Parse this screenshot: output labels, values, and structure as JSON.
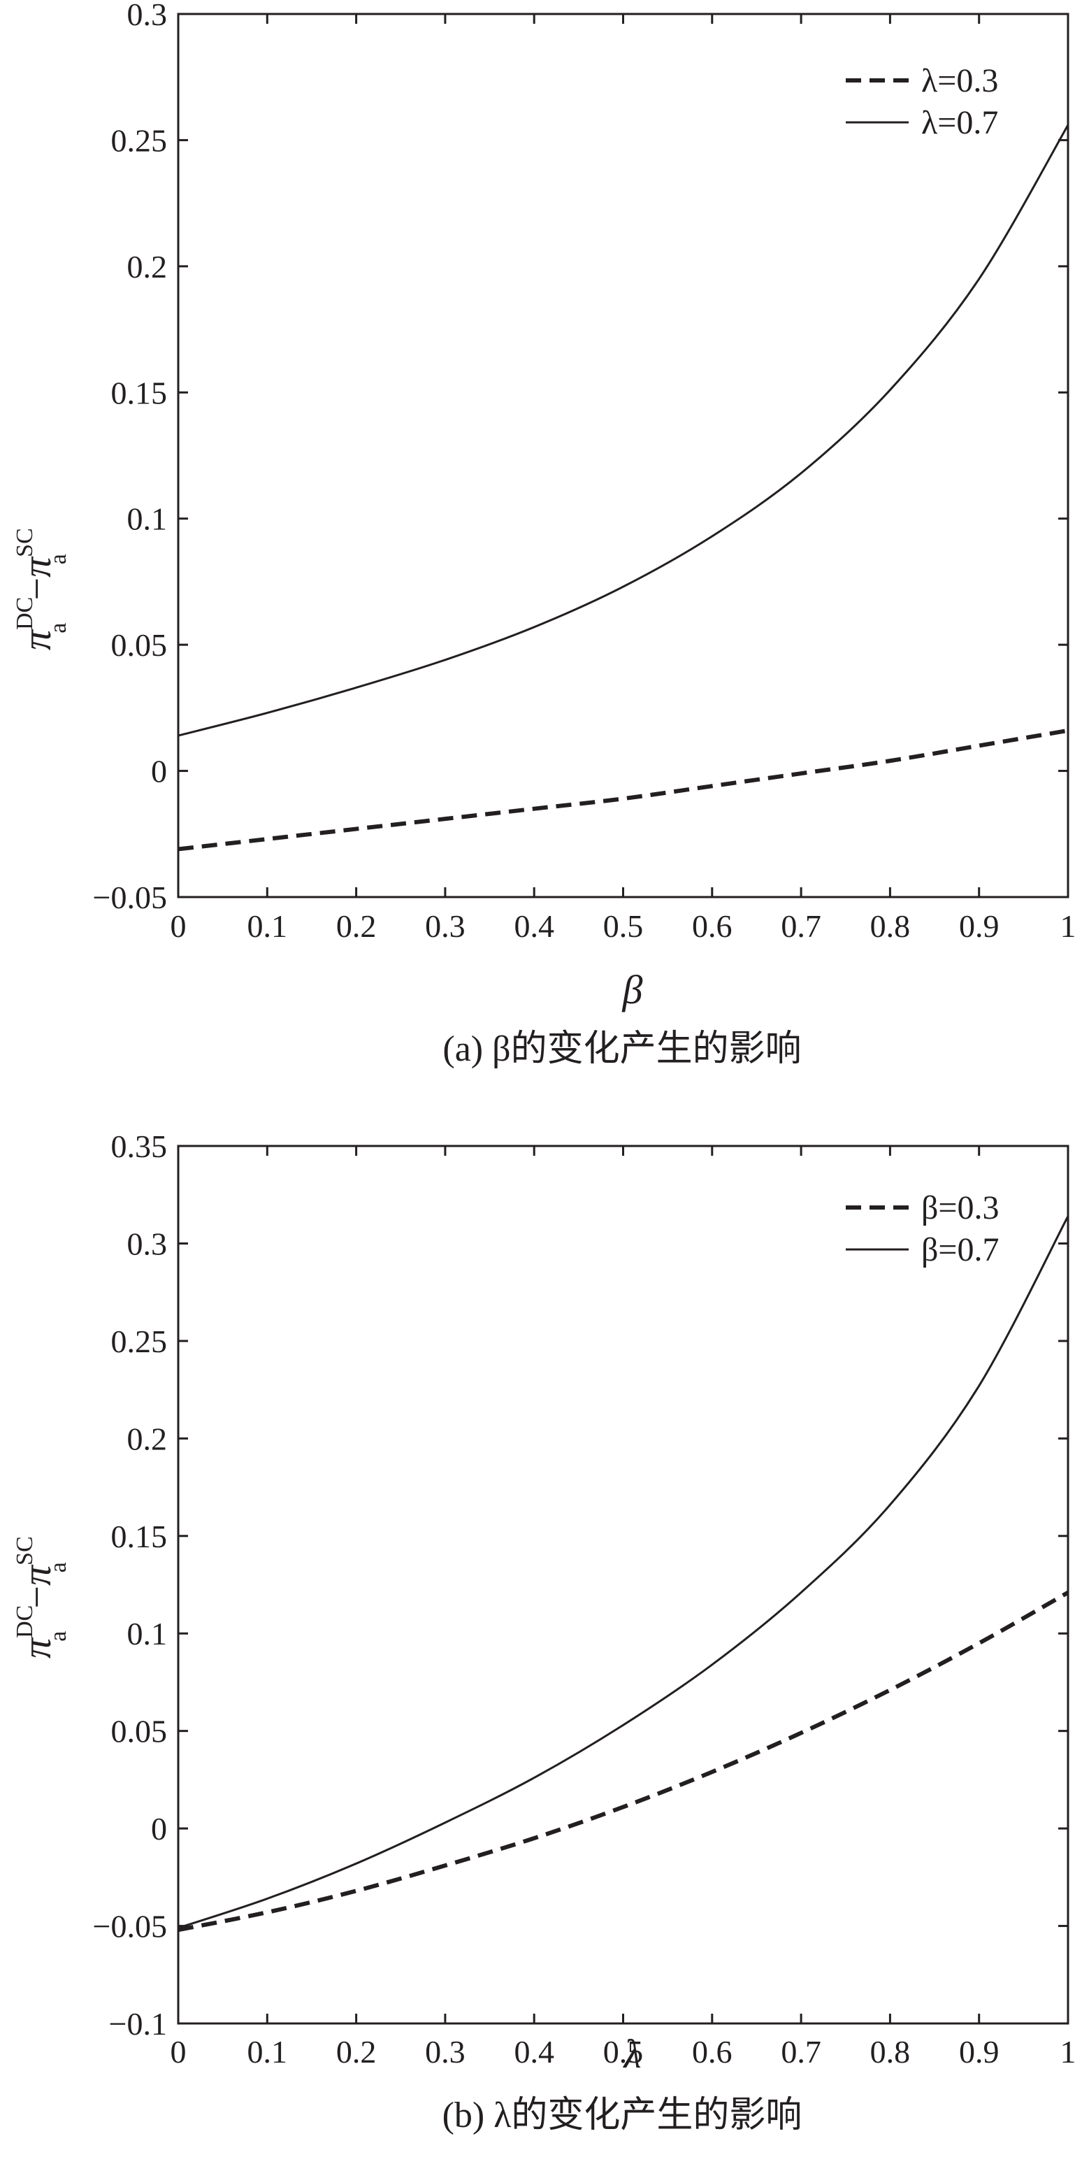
{
  "chart_data": [
    {
      "type": "line",
      "caption": "(a) β的变化产生的影响",
      "xlabel": "β",
      "ylabel": {
        "main": "π",
        "sup1": "DC",
        "sub1": "a",
        "minus": "−",
        "sup2": "SC",
        "sub2": "a"
      },
      "xlim": [
        0,
        1
      ],
      "ylim": [
        -0.05,
        0.3
      ],
      "xticks": [
        0,
        0.1,
        0.2,
        0.3,
        0.4,
        0.5,
        0.6,
        0.7,
        0.8,
        0.9,
        1
      ],
      "xtick_labels": [
        "0",
        "0.1",
        "0.2",
        "0.3",
        "0.4",
        "0.5",
        "0.6",
        "0.7",
        "0.8",
        "0.9",
        "1"
      ],
      "yticks": [
        -0.05,
        0,
        0.05,
        0.1,
        0.15,
        0.2,
        0.25,
        0.3
      ],
      "ytick_labels": [
        "−0.05",
        "0",
        "0.05",
        "0.1",
        "0.15",
        "0.2",
        "0.25",
        "0.3"
      ],
      "legend_position": "top-right",
      "grid": false,
      "x": [
        0,
        0.1,
        0.2,
        0.3,
        0.4,
        0.5,
        0.6,
        0.7,
        0.8,
        0.9,
        1.0
      ],
      "series": [
        {
          "name": "λ=0.3",
          "style": "dashed",
          "values": [
            -0.031,
            -0.027,
            -0.023,
            -0.019,
            -0.015,
            -0.011,
            -0.006,
            -0.001,
            0.004,
            0.01,
            0.016
          ]
        },
        {
          "name": "λ=0.7",
          "style": "solid",
          "values": [
            0.014,
            0.023,
            0.033,
            0.044,
            0.057,
            0.073,
            0.093,
            0.118,
            0.151,
            0.195,
            0.256
          ]
        }
      ]
    },
    {
      "type": "line",
      "caption": "(b) λ的变化产生的影响",
      "xlabel": "λ",
      "ylabel": {
        "main": "π",
        "sup1": "DC",
        "sub1": "a",
        "minus": "−",
        "sup2": "SC",
        "sub2": "a"
      },
      "xlim": [
        0,
        1
      ],
      "ylim": [
        -0.1,
        0.35
      ],
      "xticks": [
        0,
        0.1,
        0.2,
        0.3,
        0.4,
        0.5,
        0.6,
        0.7,
        0.8,
        0.9,
        1
      ],
      "xtick_labels": [
        "0",
        "0.1",
        "0.2",
        "0.3",
        "0.4",
        "0.5",
        "0.6",
        "0.7",
        "0.8",
        "0.9",
        "1"
      ],
      "yticks": [
        -0.1,
        -0.05,
        0,
        0.05,
        0.1,
        0.15,
        0.2,
        0.25,
        0.3,
        0.35
      ],
      "ytick_labels": [
        "−0.1",
        "−0.05",
        "0",
        "0.05",
        "0.1",
        "0.15",
        "0.2",
        "0.25",
        "0.3",
        "0.35"
      ],
      "legend_position": "top-right",
      "grid": false,
      "x": [
        0,
        0.1,
        0.2,
        0.3,
        0.4,
        0.5,
        0.6,
        0.7,
        0.8,
        0.9,
        1.0
      ],
      "series": [
        {
          "name": "β=0.3",
          "style": "dashed",
          "values": [
            -0.052,
            -0.043,
            -0.032,
            -0.019,
            -0.005,
            0.011,
            0.029,
            0.049,
            0.071,
            0.095,
            0.121
          ]
        },
        {
          "name": "β=0.7",
          "style": "solid",
          "values": [
            -0.051,
            -0.036,
            -0.018,
            0.003,
            0.026,
            0.053,
            0.084,
            0.121,
            0.166,
            0.227,
            0.314
          ]
        }
      ]
    }
  ]
}
